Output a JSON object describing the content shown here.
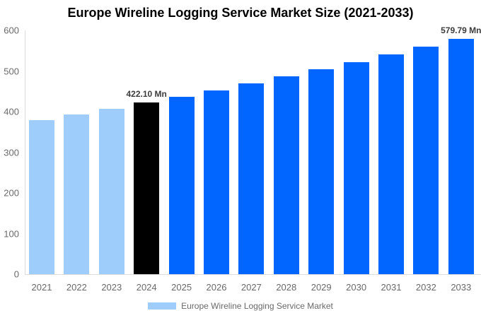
{
  "chart_data": {
    "type": "bar",
    "title": "Europe Wireline Logging Service Market Size (2021-2033)",
    "categories": [
      "2021",
      "2022",
      "2023",
      "2024",
      "2025",
      "2026",
      "2027",
      "2028",
      "2029",
      "2030",
      "2031",
      "2032",
      "2033"
    ],
    "values": [
      379.8,
      393.4,
      407.5,
      422.1,
      437.3,
      453.0,
      469.2,
      486.1,
      503.5,
      521.6,
      540.3,
      559.7,
      579.79
    ],
    "bar_colors": [
      "#9FCDFB",
      "#9FCDFB",
      "#9FCDFB",
      "#000000",
      "#0066FF",
      "#0066FF",
      "#0066FF",
      "#0066FF",
      "#0066FF",
      "#0066FF",
      "#0066FF",
      "#0066FF",
      "#0066FF"
    ],
    "unit": "Mn",
    "ylim": [
      0,
      600
    ],
    "yticks": [
      0,
      100,
      200,
      300,
      400,
      500,
      600
    ],
    "grid": false,
    "annotations": [
      {
        "category": "2024",
        "text": "422.10 Mn"
      },
      {
        "category": "2033",
        "text": "579.79 Mn"
      }
    ],
    "legend": {
      "position": "bottom",
      "swatch_color": "#9FCDFB",
      "label": "Europe Wireline Logging Service Market"
    }
  },
  "colors": {
    "historical_bar": "#9FCDFB",
    "highlight_bar": "#000000",
    "forecast_bar": "#0066FF",
    "axis_line": "#dcdcdc",
    "tick_text": "#696969",
    "annotation_text": "#3b3b3b",
    "background": "#ffffff"
  }
}
